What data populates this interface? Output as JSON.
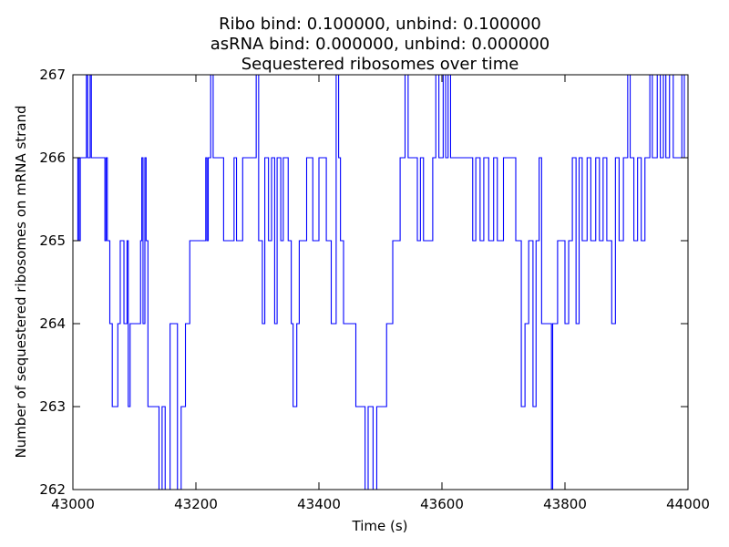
{
  "chart_data": {
    "type": "line",
    "title_lines": [
      "Ribo bind: 0.100000, unbind: 0.100000",
      "asRNA bind: 0.000000, unbind: 0.000000",
      "Sequestered ribosomes over time"
    ],
    "xlabel": "Time (s)",
    "ylabel": "Number of sequestered ribosomes on mRNA strand",
    "xlim": [
      43000,
      44000
    ],
    "ylim": [
      262,
      267
    ],
    "xticks": [
      43000,
      43200,
      43400,
      43600,
      43800,
      44000
    ],
    "yticks": [
      262,
      263,
      264,
      265,
      266,
      267
    ],
    "grid": false,
    "line_style": "step",
    "series": [
      {
        "color": "#0000ff",
        "points": [
          [
            43000,
            265
          ],
          [
            43008,
            266
          ],
          [
            43010,
            265
          ],
          [
            43012,
            266
          ],
          [
            43020,
            266
          ],
          [
            43022,
            267
          ],
          [
            43024,
            266
          ],
          [
            43028,
            267
          ],
          [
            43030,
            266
          ],
          [
            43050,
            266
          ],
          [
            43052,
            265
          ],
          [
            43054,
            266
          ],
          [
            43056,
            265
          ],
          [
            43060,
            264
          ],
          [
            43064,
            263
          ],
          [
            43073,
            264
          ],
          [
            43077,
            265
          ],
          [
            43083,
            264
          ],
          [
            43088,
            265
          ],
          [
            43090,
            263
          ],
          [
            43093,
            264
          ],
          [
            43110,
            265
          ],
          [
            43112,
            266
          ],
          [
            43114,
            264
          ],
          [
            43117,
            266
          ],
          [
            43119,
            265
          ],
          [
            43122,
            263
          ],
          [
            43140,
            262
          ],
          [
            43145,
            263
          ],
          [
            43150,
            262
          ],
          [
            43158,
            264
          ],
          [
            43170,
            262
          ],
          [
            43176,
            263
          ],
          [
            43183,
            264
          ],
          [
            43190,
            265
          ],
          [
            43214,
            265
          ],
          [
            43216,
            266
          ],
          [
            43218,
            265
          ],
          [
            43220,
            266
          ],
          [
            43224,
            267
          ],
          [
            43228,
            266
          ],
          [
            43245,
            265
          ],
          [
            43250,
            265
          ],
          [
            43262,
            266
          ],
          [
            43266,
            265
          ],
          [
            43276,
            266
          ],
          [
            43298,
            267
          ],
          [
            43302,
            265
          ],
          [
            43308,
            264
          ],
          [
            43312,
            266
          ],
          [
            43318,
            265
          ],
          [
            43323,
            266
          ],
          [
            43328,
            264
          ],
          [
            43332,
            266
          ],
          [
            43338,
            265
          ],
          [
            43342,
            266
          ],
          [
            43350,
            265
          ],
          [
            43355,
            264
          ],
          [
            43358,
            263
          ],
          [
            43364,
            264
          ],
          [
            43368,
            265
          ],
          [
            43380,
            266
          ],
          [
            43390,
            265
          ],
          [
            43400,
            266
          ],
          [
            43412,
            265
          ],
          [
            43420,
            264
          ],
          [
            43428,
            267
          ],
          [
            43432,
            266
          ],
          [
            43435,
            265
          ],
          [
            43440,
            264
          ],
          [
            43460,
            263
          ],
          [
            43475,
            262
          ],
          [
            43480,
            263
          ],
          [
            43488,
            262
          ],
          [
            43494,
            263
          ],
          [
            43510,
            264
          ],
          [
            43520,
            265
          ],
          [
            43532,
            266
          ],
          [
            43540,
            267
          ],
          [
            43545,
            266
          ],
          [
            43560,
            265
          ],
          [
            43565,
            266
          ],
          [
            43570,
            265
          ],
          [
            43585,
            266
          ],
          [
            43590,
            267
          ],
          [
            43595,
            266
          ],
          [
            43602,
            267
          ],
          [
            43606,
            266
          ],
          [
            43610,
            267
          ],
          [
            43614,
            266
          ],
          [
            43620,
            266
          ],
          [
            43650,
            265
          ],
          [
            43655,
            266
          ],
          [
            43662,
            265
          ],
          [
            43668,
            266
          ],
          [
            43676,
            265
          ],
          [
            43684,
            266
          ],
          [
            43690,
            265
          ],
          [
            43700,
            266
          ],
          [
            43720,
            265
          ],
          [
            43729,
            263
          ],
          [
            43735,
            264
          ],
          [
            43741,
            265
          ],
          [
            43748,
            263
          ],
          [
            43753,
            265
          ],
          [
            43758,
            266
          ],
          [
            43762,
            264
          ],
          [
            43778,
            262
          ],
          [
            43780,
            264
          ],
          [
            43788,
            265
          ],
          [
            43800,
            264
          ],
          [
            43806,
            265
          ],
          [
            43812,
            266
          ],
          [
            43818,
            264
          ],
          [
            43823,
            266
          ],
          [
            43828,
            265
          ],
          [
            43836,
            266
          ],
          [
            43842,
            265
          ],
          [
            43850,
            266
          ],
          [
            43856,
            265
          ],
          [
            43862,
            266
          ],
          [
            43868,
            265
          ],
          [
            43876,
            264
          ],
          [
            43882,
            266
          ],
          [
            43888,
            265
          ],
          [
            43895,
            266
          ],
          [
            43902,
            267
          ],
          [
            43906,
            266
          ],
          [
            43912,
            265
          ],
          [
            43918,
            266
          ],
          [
            43924,
            265
          ],
          [
            43930,
            266
          ],
          [
            43938,
            267
          ],
          [
            43942,
            266
          ],
          [
            43950,
            267
          ],
          [
            43955,
            266
          ],
          [
            43960,
            267
          ],
          [
            43964,
            266
          ],
          [
            43970,
            267
          ],
          [
            43976,
            266
          ],
          [
            43982,
            266
          ],
          [
            43990,
            267
          ],
          [
            43994,
            266
          ],
          [
            44000,
            266
          ]
        ]
      }
    ]
  }
}
